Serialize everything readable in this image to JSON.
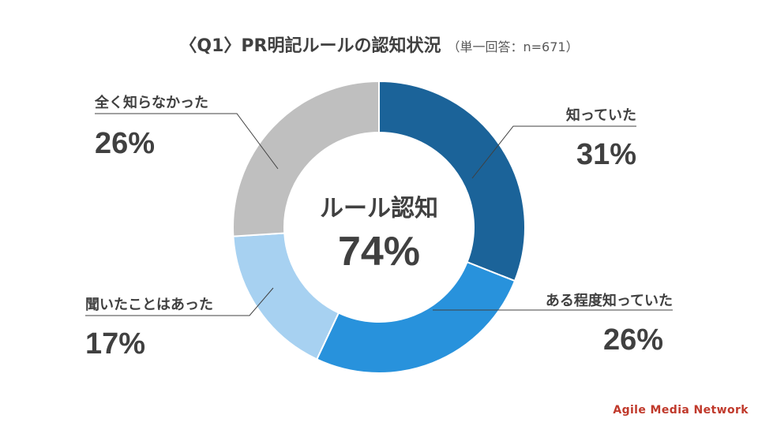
{
  "title": "〈Q1〉PR明記ルールの認知状況",
  "subtitle": "（単一回答：n=671）",
  "brand": "Agile Media Network",
  "chart_data": {
    "type": "pie",
    "donut": true,
    "center_label": "ルール認知",
    "center_value": "74%",
    "slices": [
      {
        "label": "知っていた",
        "value": 31,
        "value_label": "31%",
        "color": "#1b6399"
      },
      {
        "label": "ある程度知っていた",
        "value": 26,
        "value_label": "26%",
        "color": "#2892dc"
      },
      {
        "label": "聞いたことはあった",
        "value": 17,
        "value_label": "17%",
        "color": "#a7d1f1"
      },
      {
        "label": "全く知らなかった",
        "value": 26,
        "value_label": "26%",
        "color": "#bfbfbf"
      }
    ],
    "legend": "none"
  }
}
